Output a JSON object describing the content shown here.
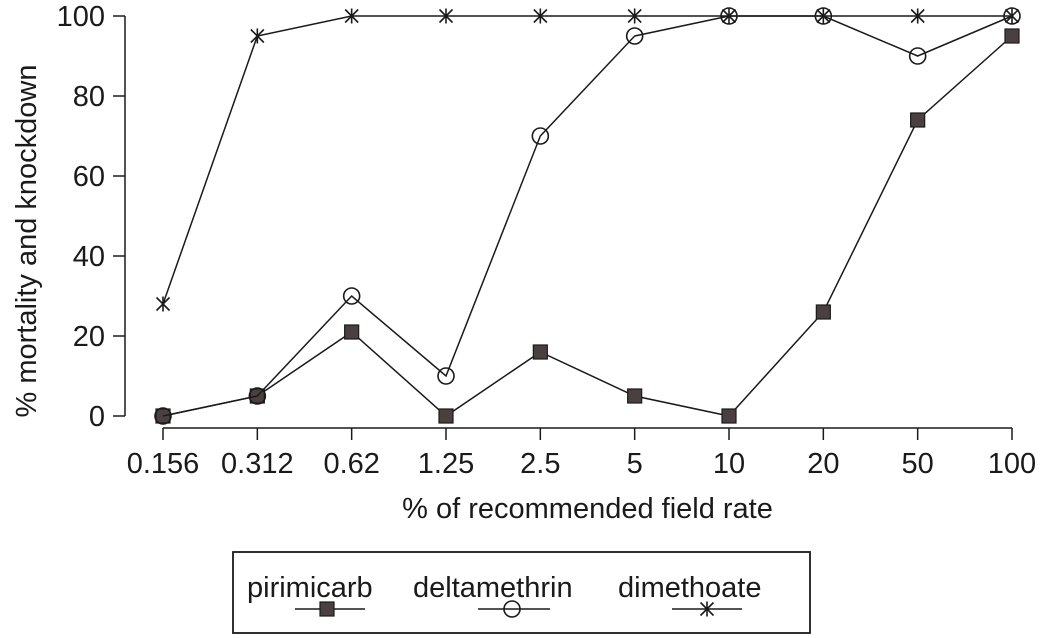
{
  "chart_data": {
    "type": "line",
    "title": "",
    "xlabel": "% of recommended field rate",
    "ylabel": "% mortality and knockdown",
    "categories": [
      "0.156",
      "0.312",
      "0.62",
      "1.25",
      "2.5",
      "5",
      "10",
      "20",
      "50",
      "100"
    ],
    "ylim": [
      0,
      100
    ],
    "yticks": [
      0,
      20,
      40,
      60,
      80,
      100
    ],
    "grid": false,
    "legend_position": "bottom",
    "series": [
      {
        "name": "pirimicarb",
        "marker": "filled-square",
        "values": [
          0,
          5,
          21,
          0,
          16,
          5,
          0,
          26,
          74,
          95
        ]
      },
      {
        "name": "deltamethrin",
        "marker": "open-circle",
        "values": [
          0,
          5,
          30,
          10,
          70,
          95,
          100,
          100,
          90,
          100
        ]
      },
      {
        "name": "dimethoate",
        "marker": "asterisk",
        "values": [
          28,
          95,
          100,
          100,
          100,
          100,
          100,
          100,
          100,
          100
        ]
      }
    ]
  },
  "colors": {
    "ink": "#1a1a1a",
    "square_fill": "#4a4040"
  }
}
